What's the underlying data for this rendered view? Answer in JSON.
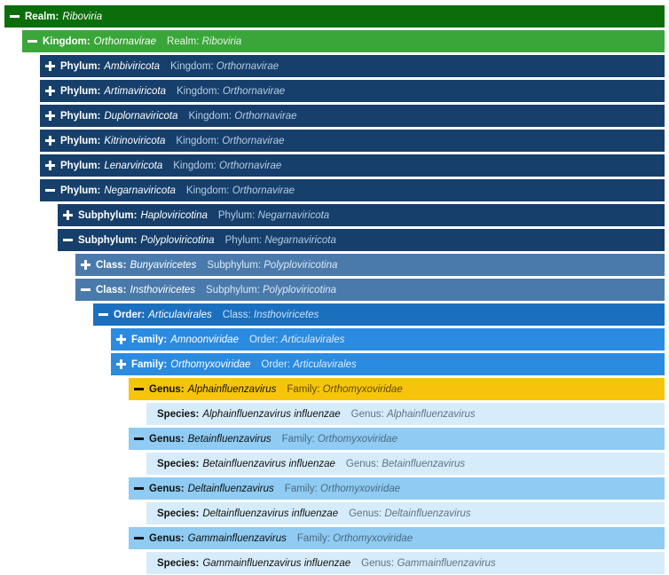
{
  "colors": {
    "realm": "#0b6e0b",
    "kingdom": "#3aa63a",
    "phylum": "#163f6b",
    "subphylum": "#163f6b",
    "class": "#4a7aab",
    "order": "#1b6fbf",
    "family": "#2b8be0",
    "genus_selected": "#f7c40c",
    "genus": "#8fcbf2",
    "species": "#d6ecfa"
  },
  "rows": [
    {
      "toggle": "minus",
      "rank": "Realm:",
      "name": "Riboviria",
      "parent_rank": "",
      "parent_name": ""
    },
    {
      "toggle": "minus",
      "rank": "Kingdom:",
      "name": "Orthornavirae",
      "parent_rank": "Realm: ",
      "parent_name": "Riboviria"
    },
    {
      "toggle": "plus",
      "rank": "Phylum:",
      "name": "Ambiviricota",
      "parent_rank": "Kingdom: ",
      "parent_name": "Orthornavirae"
    },
    {
      "toggle": "plus",
      "rank": "Phylum:",
      "name": "Artimaviricota",
      "parent_rank": "Kingdom: ",
      "parent_name": "Orthornavirae"
    },
    {
      "toggle": "plus",
      "rank": "Phylum:",
      "name": "Duplornaviricota",
      "parent_rank": "Kingdom: ",
      "parent_name": "Orthornavirae"
    },
    {
      "toggle": "plus",
      "rank": "Phylum:",
      "name": "Kitrinoviricota",
      "parent_rank": "Kingdom: ",
      "parent_name": "Orthornavirae"
    },
    {
      "toggle": "plus",
      "rank": "Phylum:",
      "name": "Lenarviricota",
      "parent_rank": "Kingdom: ",
      "parent_name": "Orthornavirae"
    },
    {
      "toggle": "minus",
      "rank": "Phylum:",
      "name": "Negarnaviricota",
      "parent_rank": "Kingdom: ",
      "parent_name": "Orthornavirae"
    },
    {
      "toggle": "plus",
      "rank": "Subphylum:",
      "name": "Haploviricotina",
      "parent_rank": "Phylum: ",
      "parent_name": "Negarnaviricota"
    },
    {
      "toggle": "minus",
      "rank": "Subphylum:",
      "name": "Polyploviricotina",
      "parent_rank": "Phylum: ",
      "parent_name": "Negarnaviricota"
    },
    {
      "toggle": "plus",
      "rank": "Class:",
      "name": "Bunyaviricetes",
      "parent_rank": "Subphylum: ",
      "parent_name": "Polyploviricotina"
    },
    {
      "toggle": "minus",
      "rank": "Class:",
      "name": "Insthoviricetes",
      "parent_rank": "Subphylum: ",
      "parent_name": "Polyploviricotina"
    },
    {
      "toggle": "minus",
      "rank": "Order:",
      "name": "Articulavirales",
      "parent_rank": "Class: ",
      "parent_name": "Insthoviricetes"
    },
    {
      "toggle": "plus",
      "rank": "Family:",
      "name": "Amnoonviridae",
      "parent_rank": "Order: ",
      "parent_name": "Articulavirales"
    },
    {
      "toggle": "plus",
      "rank": "Family:",
      "name": "Orthomyxoviridae",
      "parent_rank": "Order: ",
      "parent_name": "Articulavirales"
    },
    {
      "toggle": "minus",
      "rank": "Genus:",
      "name": "Alphainfluenzavirus",
      "parent_rank": "Family: ",
      "parent_name": "Orthomyxoviridae"
    },
    {
      "toggle": "",
      "rank": "Species:",
      "name": "Alphainfluenzavirus influenzae",
      "parent_rank": "Genus: ",
      "parent_name": "Alphainfluenzavirus"
    },
    {
      "toggle": "minus",
      "rank": "Genus:",
      "name": "Betainfluenzavirus",
      "parent_rank": "Family: ",
      "parent_name": "Orthomyxoviridae"
    },
    {
      "toggle": "",
      "rank": "Species:",
      "name": "Betainfluenzavirus influenzae",
      "parent_rank": "Genus: ",
      "parent_name": "Betainfluenzavirus"
    },
    {
      "toggle": "minus",
      "rank": "Genus:",
      "name": "Deltainfluenzavirus",
      "parent_rank": "Family: ",
      "parent_name": "Orthomyxoviridae"
    },
    {
      "toggle": "",
      "rank": "Species:",
      "name": "Deltainfluenzavirus influenzae",
      "parent_rank": "Genus: ",
      "parent_name": "Deltainfluenzavirus"
    },
    {
      "toggle": "minus",
      "rank": "Genus:",
      "name": "Gammainfluenzavirus",
      "parent_rank": "Family: ",
      "parent_name": "Orthomyxoviridae"
    },
    {
      "toggle": "",
      "rank": "Species:",
      "name": "Gammainfluenzavirus influenzae",
      "parent_rank": "Genus: ",
      "parent_name": "Gammainfluenzavirus"
    }
  ]
}
